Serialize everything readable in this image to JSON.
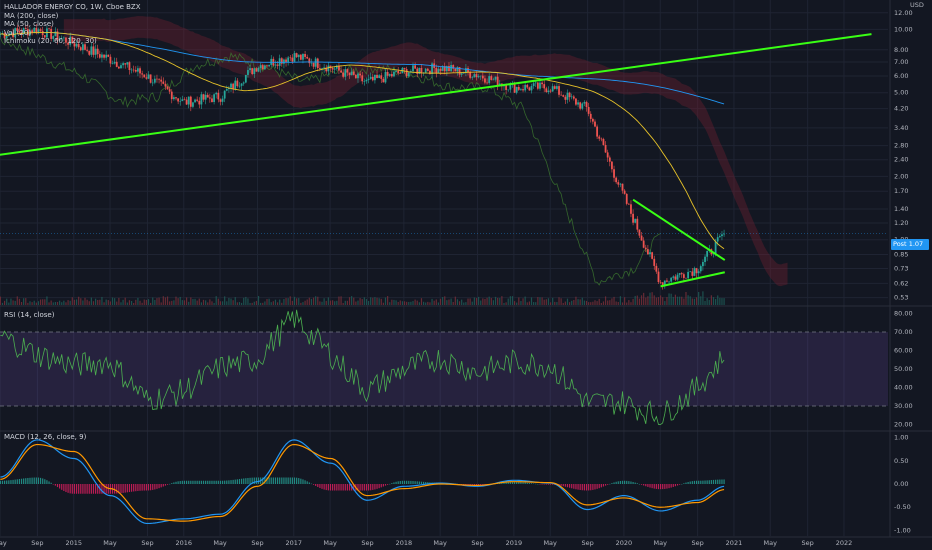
{
  "chart_data": [
    {
      "type": "line",
      "panel": "price",
      "title": "HALLADOR ENERGY CO, 1W, Cboe BZX",
      "indicators": [
        "MA (200, close)",
        "MA (50, close)",
        "Vol (20)",
        "Ichimoku (20, 60, 120, 30)"
      ],
      "price_scale": "log",
      "y_currency": "USD",
      "y_ticks": [
        0.53,
        0.62,
        0.73,
        0.85,
        1.0,
        1.2,
        1.4,
        1.7,
        2.0,
        2.4,
        2.8,
        3.4,
        4.2,
        5.0,
        6.0,
        7.0,
        8.0,
        10.0,
        12.0
      ],
      "last_price": {
        "label": "Post",
        "value": "1.07"
      },
      "x": [
        "2014-05",
        "2014-09",
        "2015-01",
        "2015-05",
        "2015-09",
        "2016-01",
        "2016-05",
        "2016-09",
        "2017-01",
        "2017-05",
        "2017-09",
        "2018-01",
        "2018-05",
        "2018-09",
        "2019-01",
        "2019-05",
        "2019-09",
        "2020-01",
        "2020-05",
        "2020-09",
        "2020-12"
      ],
      "close": [
        9.5,
        10.0,
        8.6,
        7.2,
        6.0,
        4.5,
        4.8,
        6.7,
        7.5,
        6.6,
        5.6,
        6.3,
        6.6,
        6.1,
        5.3,
        5.3,
        4.2,
        1.6,
        0.63,
        0.73,
        1.07
      ],
      "trendlines": [
        {
          "from": [
            "2014-04",
            2.5
          ],
          "to": [
            "2022-04",
            9.5
          ]
        },
        {
          "from": [
            "2020-02",
            1.55
          ],
          "to": [
            "2020-12",
            0.8
          ]
        },
        {
          "from": [
            "2020-05",
            0.6
          ],
          "to": [
            "2020-12",
            0.7
          ]
        }
      ]
    },
    {
      "type": "line",
      "panel": "rsi",
      "title": "RSI (14, close)",
      "y_ticks": [
        20.0,
        30.0,
        40.0,
        50.0,
        60.0,
        70.0,
        80.0
      ],
      "bands": [
        30,
        70
      ],
      "x": [
        "2014-05",
        "2014-09",
        "2015-01",
        "2015-05",
        "2015-09",
        "2016-01",
        "2016-05",
        "2016-09",
        "2017-01",
        "2017-05",
        "2017-09",
        "2018-01",
        "2018-05",
        "2018-09",
        "2019-01",
        "2019-05",
        "2019-09",
        "2020-01",
        "2020-05",
        "2020-09",
        "2020-12"
      ],
      "values": [
        68,
        58,
        52,
        54,
        33,
        38,
        51,
        55,
        78,
        58,
        38,
        50,
        56,
        48,
        54,
        52,
        32,
        32,
        24,
        40,
        57
      ]
    },
    {
      "type": "line",
      "panel": "macd",
      "title": "MACD (12, 26, close, 9)",
      "y_ticks": [
        -1.0,
        -0.5,
        0.0,
        0.5,
        1.0
      ],
      "x": [
        "2014-05",
        "2014-09",
        "2015-01",
        "2015-05",
        "2015-09",
        "2016-01",
        "2016-05",
        "2016-09",
        "2017-01",
        "2017-05",
        "2017-09",
        "2018-01",
        "2018-05",
        "2018-09",
        "2019-01",
        "2019-05",
        "2019-09",
        "2020-01",
        "2020-05",
        "2020-09",
        "2020-12"
      ],
      "series": [
        {
          "name": "MACD",
          "values": [
            0.15,
            0.95,
            0.55,
            -0.25,
            -0.85,
            -0.75,
            -0.65,
            0.05,
            0.95,
            0.45,
            -0.35,
            -0.05,
            0.02,
            -0.05,
            0.08,
            0.02,
            -0.55,
            -0.25,
            -0.58,
            -0.35,
            -0.05
          ]
        },
        {
          "name": "Signal",
          "values": [
            0.1,
            0.85,
            0.7,
            -0.1,
            -0.75,
            -0.8,
            -0.7,
            -0.05,
            0.85,
            0.55,
            -0.25,
            -0.1,
            0.0,
            -0.03,
            0.05,
            0.03,
            -0.45,
            -0.3,
            -0.5,
            -0.4,
            -0.12
          ]
        }
      ]
    }
  ],
  "x_axis_labels": [
    "May",
    "Sep",
    "2015",
    "May",
    "Sep",
    "2016",
    "May",
    "Sep",
    "2017",
    "May",
    "Sep",
    "2018",
    "May",
    "Sep",
    "2019",
    "May",
    "Sep",
    "2020",
    "May",
    "Sep",
    "2021",
    "May",
    "Sep",
    "2022"
  ],
  "colors": {
    "background": "#131722",
    "up": "#26a69a",
    "down": "#ef5350",
    "trendline": "#39ff14",
    "ma200": "#2196f3",
    "ma50": "#e6c229",
    "rsi": "#4caf50",
    "rsi_band": "#7e57c2",
    "macd": "#2196f3",
    "signal": "#ff9800",
    "badge": "#2196f3"
  }
}
